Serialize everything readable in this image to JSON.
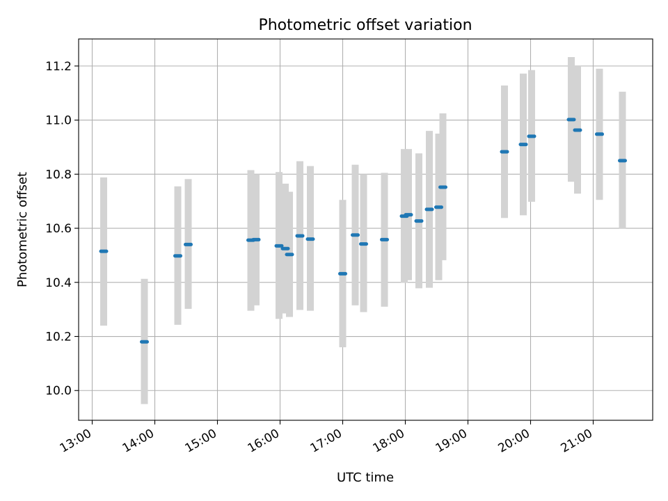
{
  "chart_data": {
    "type": "scatter",
    "title": "Photometric offset variation",
    "xlabel": "UTC time",
    "ylabel": "Photometric offset",
    "x_ticks": [
      "13:00",
      "14:00",
      "15:00",
      "16:00",
      "17:00",
      "18:00",
      "19:00",
      "20:00",
      "21:00"
    ],
    "y_ticks": [
      "10.0",
      "10.2",
      "10.4",
      "10.6",
      "10.8",
      "11.0",
      "11.2"
    ],
    "xlim": [
      "12:47",
      "21:57"
    ],
    "ylim": [
      9.89,
      11.3
    ],
    "grid": true,
    "errorbar_color": "#d3d3d3",
    "point_color": "#1f77b4",
    "points": [
      {
        "time": "13:11",
        "value": 10.515,
        "low": 10.24,
        "high": 10.788
      },
      {
        "time": "13:50",
        "value": 10.18,
        "low": 9.95,
        "high": 10.413
      },
      {
        "time": "14:22",
        "value": 10.498,
        "low": 10.243,
        "high": 10.755
      },
      {
        "time": "14:32",
        "value": 10.54,
        "low": 10.302,
        "high": 10.782
      },
      {
        "time": "15:32",
        "value": 10.556,
        "low": 10.295,
        "high": 10.815
      },
      {
        "time": "15:37",
        "value": 10.558,
        "low": 10.315,
        "high": 10.8
      },
      {
        "time": "15:59",
        "value": 10.535,
        "low": 10.265,
        "high": 10.808
      },
      {
        "time": "16:05",
        "value": 10.525,
        "low": 10.285,
        "high": 10.765
      },
      {
        "time": "16:09",
        "value": 10.503,
        "low": 10.272,
        "high": 10.735
      },
      {
        "time": "16:19",
        "value": 10.572,
        "low": 10.298,
        "high": 10.848
      },
      {
        "time": "16:29",
        "value": 10.56,
        "low": 10.295,
        "high": 10.83
      },
      {
        "time": "17:00",
        "value": 10.432,
        "low": 10.16,
        "high": 10.705
      },
      {
        "time": "17:12",
        "value": 10.575,
        "low": 10.315,
        "high": 10.835
      },
      {
        "time": "17:20",
        "value": 10.542,
        "low": 10.29,
        "high": 10.8
      },
      {
        "time": "17:40",
        "value": 10.558,
        "low": 10.31,
        "high": 10.805
      },
      {
        "time": "17:59",
        "value": 10.645,
        "low": 10.398,
        "high": 10.893
      },
      {
        "time": "18:03",
        "value": 10.65,
        "low": 10.408,
        "high": 10.893
      },
      {
        "time": "18:13",
        "value": 10.627,
        "low": 10.378,
        "high": 10.877
      },
      {
        "time": "18:23",
        "value": 10.67,
        "low": 10.38,
        "high": 10.96
      },
      {
        "time": "18:32",
        "value": 10.678,
        "low": 10.408,
        "high": 10.95
      },
      {
        "time": "18:36",
        "value": 10.752,
        "low": 10.482,
        "high": 11.025
      },
      {
        "time": "19:35",
        "value": 10.883,
        "low": 10.638,
        "high": 11.128
      },
      {
        "time": "19:53",
        "value": 10.91,
        "low": 10.648,
        "high": 11.172
      },
      {
        "time": "20:01",
        "value": 10.94,
        "low": 10.698,
        "high": 11.185
      },
      {
        "time": "20:39",
        "value": 11.002,
        "low": 10.772,
        "high": 11.233
      },
      {
        "time": "20:45",
        "value": 10.963,
        "low": 10.728,
        "high": 11.2
      },
      {
        "time": "21:06",
        "value": 10.948,
        "low": 10.705,
        "high": 11.19
      },
      {
        "time": "21:28",
        "value": 10.85,
        "low": 10.598,
        "high": 11.105
      }
    ]
  }
}
